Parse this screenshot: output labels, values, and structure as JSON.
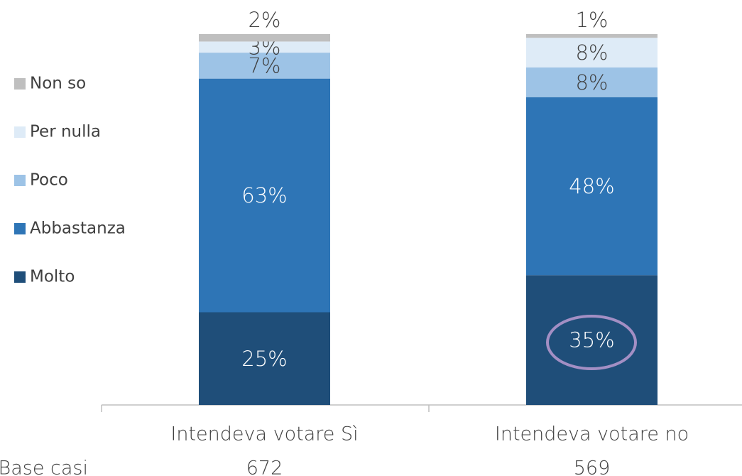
{
  "chart_data": {
    "type": "stacked_bar",
    "categories": [
      "Intendeva votare Sì",
      "Intendeva votare no"
    ],
    "base_label": "Base casi",
    "base_counts": [
      672,
      569
    ],
    "ylim": [
      0,
      100
    ],
    "series": [
      {
        "name": "Molto",
        "color": "#1f4e79",
        "values": [
          25,
          35
        ],
        "value_labels": [
          "25%",
          "35%"
        ]
      },
      {
        "name": "Abbastanza",
        "color": "#2e75b6",
        "values": [
          63,
          48
        ],
        "value_labels": [
          "63%",
          "48%"
        ]
      },
      {
        "name": "Poco",
        "color": "#9dc3e6",
        "values": [
          7,
          8
        ],
        "value_labels": [
          "7%",
          "8%"
        ]
      },
      {
        "name": "Per nulla",
        "color": "#deebf7",
        "values": [
          3,
          8
        ],
        "value_labels": [
          "3%",
          "8%"
        ]
      },
      {
        "name": "Non so",
        "color": "#bfbfbf",
        "values": [
          2,
          1
        ],
        "value_labels": [
          "2%",
          "1%"
        ]
      }
    ]
  }
}
